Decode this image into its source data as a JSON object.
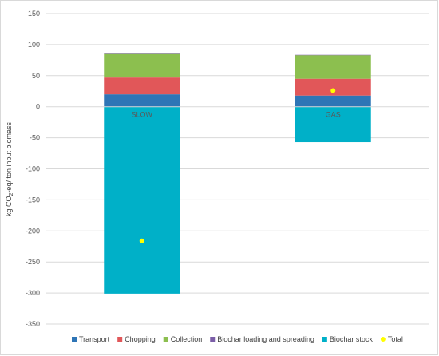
{
  "chart_data": {
    "type": "bar",
    "stacked": true,
    "categories": [
      "SLOW",
      "GAS"
    ],
    "series": [
      {
        "name": "Transport",
        "color": "#2e75b6",
        "values": [
          20,
          18
        ]
      },
      {
        "name": "Chopping",
        "color": "#e15759",
        "values": [
          27,
          27
        ]
      },
      {
        "name": "Collection",
        "color": "#8cbf4f",
        "values": [
          38,
          38
        ]
      },
      {
        "name": "Biochar loading and spreading",
        "color": "#7b5ea7",
        "values": [
          0.5,
          0.5
        ]
      },
      {
        "name": "Biochar stock",
        "color": "#00b0c8",
        "values": [
          -301,
          -57
        ]
      }
    ],
    "total": {
      "name": "Total",
      "color": "#ffff00",
      "values": [
        -216,
        26
      ]
    },
    "ylabel_parts": {
      "pre": "kg CO",
      "sub": "2",
      "post": "-eq/ ton input biomass"
    },
    "yticks": [
      150,
      100,
      50,
      0,
      -50,
      -100,
      -150,
      -200,
      -250,
      -300,
      -350
    ],
    "ylim": [
      -350,
      150
    ],
    "grid": true,
    "legend_position": "bottom"
  }
}
